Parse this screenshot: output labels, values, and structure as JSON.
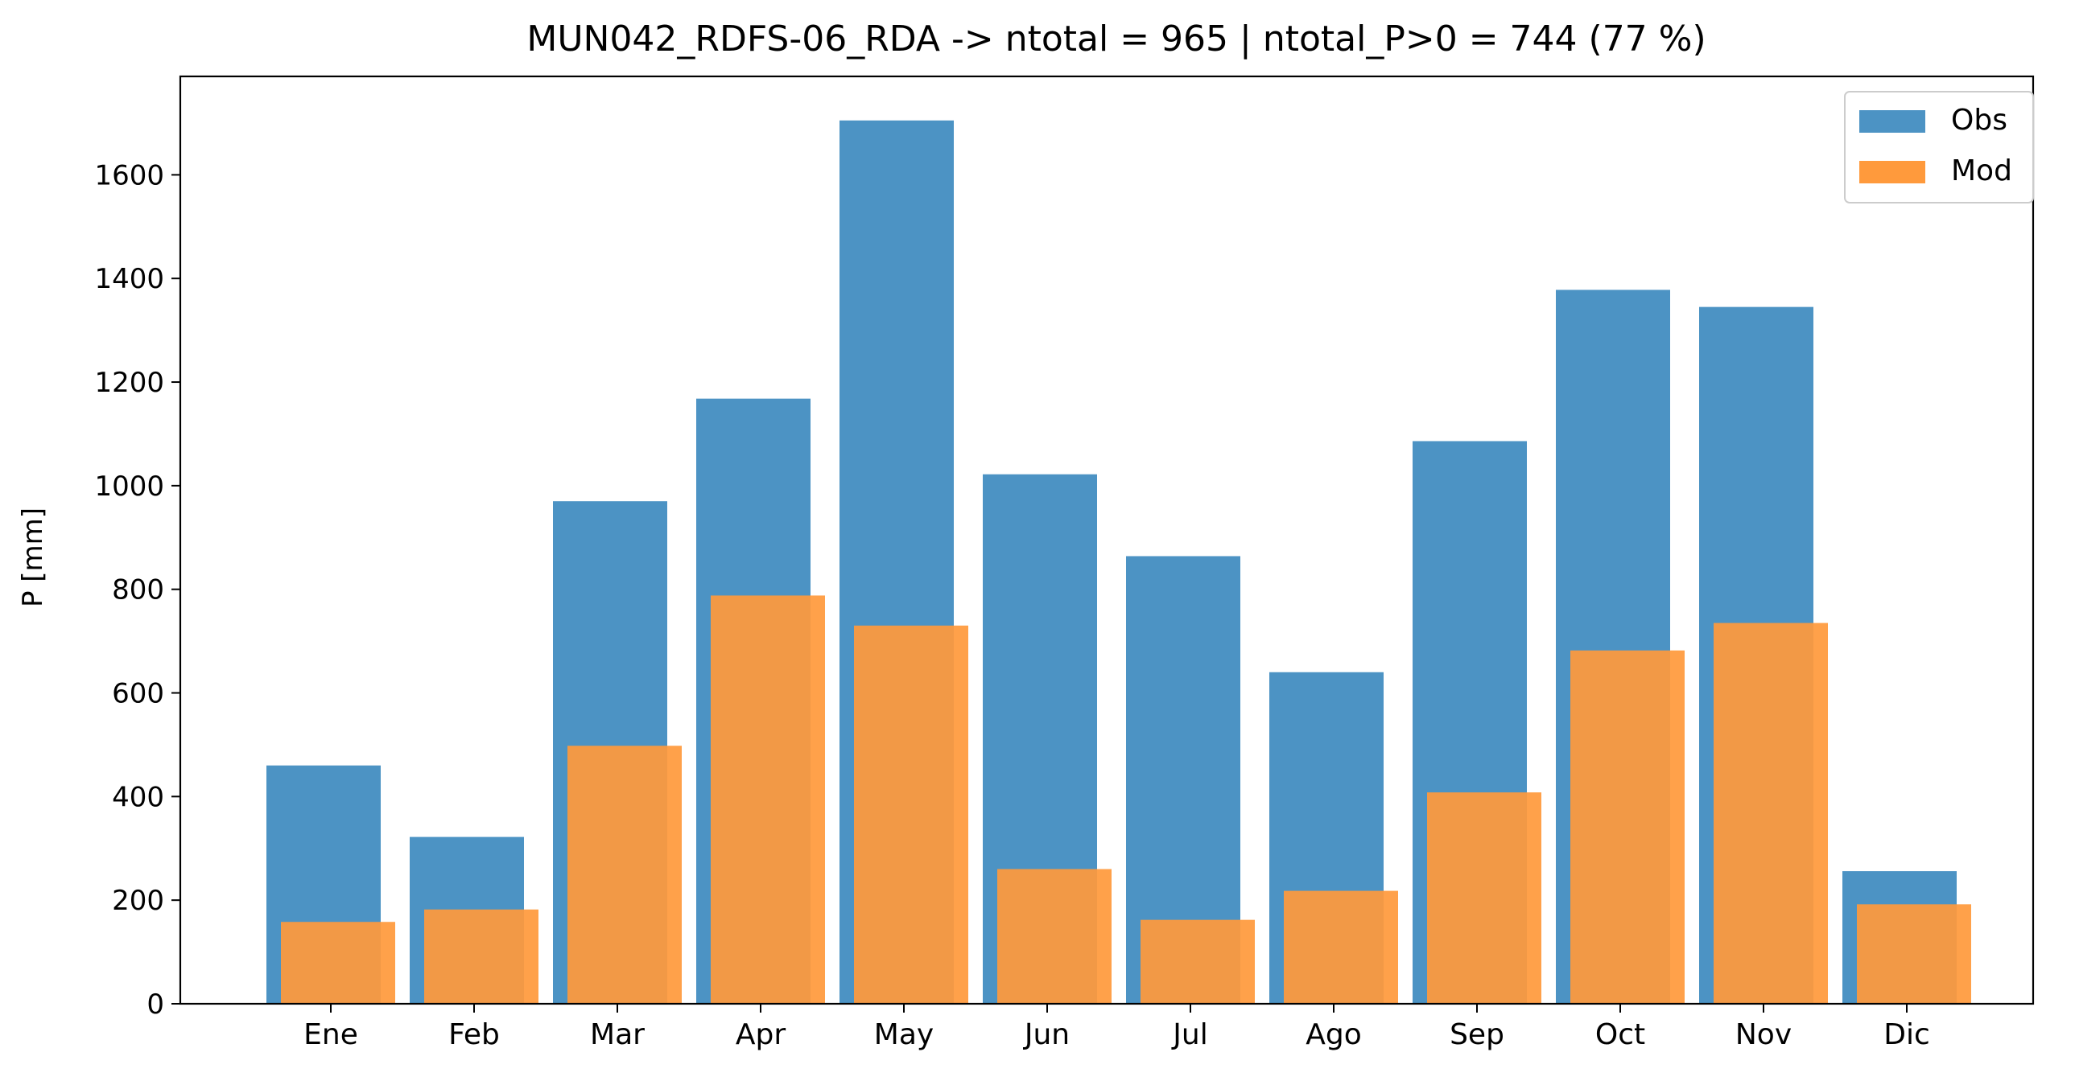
{
  "chart_data": {
    "type": "bar",
    "title": "MUN042_RDFS-06_RDA -> ntotal = 965 | ntotal_P>0 = 744 (77 %)",
    "xlabel": "",
    "ylabel": "P [mm]",
    "categories": [
      "Ene",
      "Feb",
      "Mar",
      "Apr",
      "May",
      "Jun",
      "Jul",
      "Ago",
      "Sep",
      "Oct",
      "Nov",
      "Dic"
    ],
    "ylim": [
      0,
      1790
    ],
    "yticks": [
      0,
      200,
      400,
      600,
      800,
      1000,
      1200,
      1400,
      1600
    ],
    "series": [
      {
        "name": "Obs",
        "color": "#4c93c4",
        "values": [
          460,
          322,
          970,
          1168,
          1705,
          1022,
          864,
          640,
          1086,
          1378,
          1345,
          256
        ]
      },
      {
        "name": "Mod",
        "color": "#ff9a3c",
        "values": [
          158,
          182,
          498,
          788,
          730,
          260,
          162,
          218,
          408,
          682,
          735,
          192
        ]
      }
    ],
    "legend": {
      "position": "top-right",
      "entries": [
        "Obs",
        "Mod"
      ]
    },
    "grid": false
  }
}
